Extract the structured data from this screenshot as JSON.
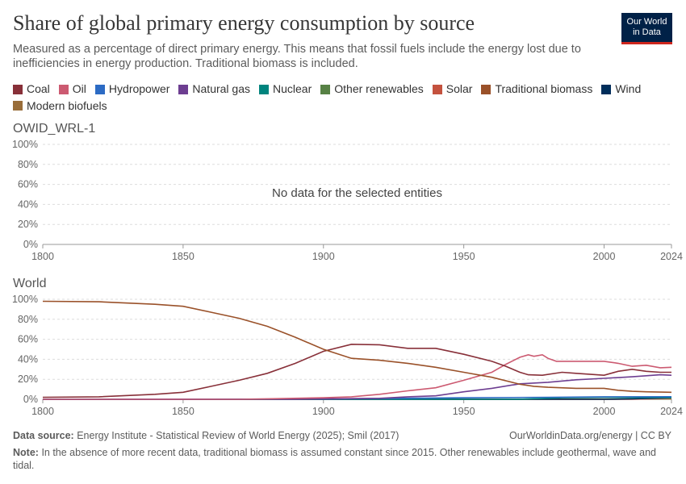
{
  "header": {
    "title": "Share of global primary energy consumption by source",
    "subtitle": "Measured as a percentage of direct primary energy. This means that fossil fuels include the energy lost due to inefficiencies in energy production. Traditional biomass is included.",
    "logo": "Our World in Data"
  },
  "legend": [
    {
      "name": "Coal",
      "color": "#883039"
    },
    {
      "name": "Oil",
      "color": "#cc5a71"
    },
    {
      "name": "Hydropower",
      "color": "#2c6bc4"
    },
    {
      "name": "Natural gas",
      "color": "#6d3e91"
    },
    {
      "name": "Nuclear",
      "color": "#00847e"
    },
    {
      "name": "Other renewables",
      "color": "#578145"
    },
    {
      "name": "Solar",
      "color": "#c4523e"
    },
    {
      "name": "Traditional biomass",
      "color": "#9a5129"
    },
    {
      "name": "Wind",
      "color": "#002e5b"
    },
    {
      "name": "Modern biofuels",
      "color": "#996d39"
    }
  ],
  "chart_data": [
    {
      "type": "line",
      "title": "OWID_WRL-1",
      "message": "No data for the selected entities",
      "xlim": [
        1800,
        2024
      ],
      "ylim": [
        0,
        100
      ],
      "xticks": [
        "1800",
        "1850",
        "1900",
        "1950",
        "2000",
        "2024"
      ],
      "yticks": [
        "0%",
        "20%",
        "40%",
        "60%",
        "80%",
        "100%"
      ],
      "grid": true,
      "series": []
    },
    {
      "type": "line",
      "title": "World",
      "xlim": [
        1800,
        2024
      ],
      "ylim": [
        0,
        100
      ],
      "xticks": [
        "1800",
        "1850",
        "1900",
        "1950",
        "2000",
        "2024"
      ],
      "yticks": [
        "0%",
        "20%",
        "40%",
        "60%",
        "80%",
        "100%"
      ],
      "grid": true,
      "series": [
        {
          "name": "Traditional biomass",
          "x": [
            1800,
            1820,
            1840,
            1850,
            1860,
            1870,
            1880,
            1890,
            1900,
            1910,
            1920,
            1930,
            1940,
            1950,
            1960,
            1970,
            1975,
            1980,
            1990,
            2000,
            2005,
            2010,
            2015,
            2024
          ],
          "y": [
            98,
            97.5,
            95,
            93,
            87,
            81,
            73,
            62,
            50,
            41,
            39,
            36,
            32,
            27,
            22,
            15,
            13,
            12,
            11,
            11,
            9,
            8,
            7.5,
            7
          ]
        },
        {
          "name": "Coal",
          "x": [
            1800,
            1820,
            1840,
            1850,
            1860,
            1870,
            1880,
            1890,
            1900,
            1910,
            1920,
            1930,
            1940,
            1950,
            1960,
            1965,
            1970,
            1973,
            1978,
            1985,
            1990,
            2000,
            2005,
            2010,
            2015,
            2020,
            2024
          ],
          "y": [
            2,
            2.5,
            5,
            7,
            13,
            19,
            26,
            36,
            48,
            55,
            54.5,
            51,
            51,
            45,
            38,
            33,
            27,
            24.5,
            24,
            27,
            26,
            24,
            28,
            30,
            28,
            27,
            27
          ]
        },
        {
          "name": "Oil",
          "x": [
            1800,
            1870,
            1880,
            1900,
            1910,
            1920,
            1930,
            1940,
            1950,
            1960,
            1965,
            1970,
            1973,
            1975,
            1978,
            1980,
            1983,
            1990,
            2000,
            2005,
            2010,
            2015,
            2020,
            2024
          ],
          "y": [
            0,
            0,
            0.5,
            1.5,
            2.5,
            5,
            8.5,
            11.5,
            19,
            27,
            35,
            42,
            44.5,
            43,
            44.5,
            41,
            38,
            38,
            38,
            36,
            33,
            34,
            31.5,
            32
          ]
        },
        {
          "name": "Natural gas",
          "x": [
            1800,
            1890,
            1900,
            1920,
            1930,
            1940,
            1950,
            1960,
            1970,
            1980,
            1990,
            2000,
            2010,
            2020,
            2024
          ],
          "y": [
            0,
            0,
            0.5,
            1,
            2.5,
            3.5,
            7.5,
            11,
            15.5,
            17,
            19.5,
            21,
            22.5,
            24.5,
            24
          ]
        },
        {
          "name": "Hydropower",
          "x": [
            1800,
            1900,
            1950,
            1980,
            2000,
            2024
          ],
          "y": [
            0,
            0.3,
            1.5,
            2,
            2.5,
            2.6
          ]
        },
        {
          "name": "Nuclear",
          "x": [
            1800,
            1960,
            1970,
            1985,
            2000,
            2024
          ],
          "y": [
            0,
            0,
            0.1,
            1.5,
            2,
            1.5
          ]
        },
        {
          "name": "Wind",
          "x": [
            1800,
            2000,
            2010,
            2024
          ],
          "y": [
            0,
            0,
            0.4,
            1.5
          ]
        },
        {
          "name": "Solar",
          "x": [
            1800,
            2010,
            2024
          ],
          "y": [
            0,
            0,
            1
          ]
        },
        {
          "name": "Other renewables",
          "x": [
            1800,
            1950,
            2000,
            2024
          ],
          "y": [
            0,
            0.1,
            0.3,
            0.4
          ]
        },
        {
          "name": "Modern biofuels",
          "x": [
            1800,
            2000,
            2024
          ],
          "y": [
            0,
            0.1,
            0.4
          ]
        }
      ]
    }
  ],
  "footer": {
    "source_label": "Data source:",
    "source": "Energy Institute - Statistical Review of World Energy (2025); Smil (2017)",
    "url": "OurWorldinData.org/energy | CC BY",
    "note_label": "Note:",
    "note": "In the absence of more recent data, traditional biomass is assumed constant since 2015. Other renewables include geothermal, wave and tidal."
  }
}
